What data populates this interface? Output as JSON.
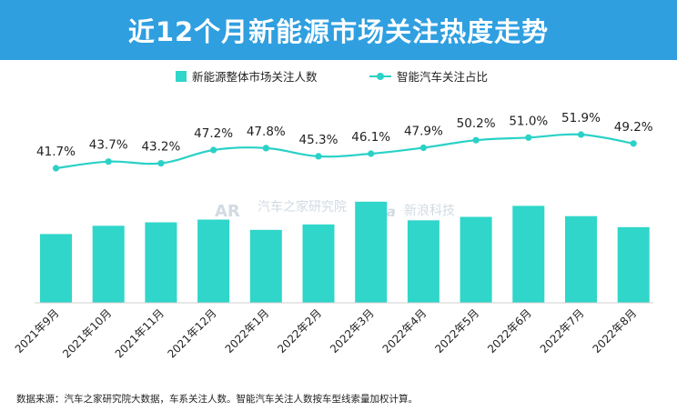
{
  "header": {
    "title": "近12个月新能源市场关注热度走势"
  },
  "legend": {
    "bar_label": "新能源整体市场关注人数",
    "line_label": "智能汽车关注占比"
  },
  "watermark": {
    "logo_text": "AR",
    "source_text": "汽车之家研究院",
    "sina_logo": "sina",
    "sina_text": "新浪科技"
  },
  "footnote": "数据来源：汽车之家研究院大数据，车系关注人数。智能汽车关注人数按车型线索量加权计算。",
  "colors": {
    "header_bg": "#2f9fe0",
    "bar": "#2fd6c9",
    "line": "#2ad1c6"
  },
  "chart_data": {
    "type": "bar+line",
    "title": "近12个月新能源市场关注热度走势",
    "categories": [
      "2021年9月",
      "2021年10月",
      "2021年11月",
      "2021年12月",
      "2022年1月",
      "2022年2月",
      "2022年3月",
      "2022年4月",
      "2022年5月",
      "2022年6月",
      "2022年7月",
      "2022年8月"
    ],
    "series": [
      {
        "name": "新能源整体市场关注人数",
        "kind": "bar",
        "values": [
          100,
          112,
          117,
          121,
          106,
          114,
          147,
          120,
          125,
          141,
          126,
          110
        ],
        "ylim": [
          0,
          160
        ]
      },
      {
        "name": "智能汽车关注占比",
        "kind": "line",
        "values": [
          41.7,
          43.7,
          43.2,
          47.2,
          47.8,
          45.3,
          46.1,
          47.9,
          50.2,
          51.0,
          51.9,
          49.2
        ],
        "labels": [
          "41.7%",
          "43.7%",
          "43.2%",
          "47.2%",
          "47.8%",
          "45.3%",
          "46.1%",
          "47.9%",
          "50.2%",
          "51.0%",
          "51.9%",
          "49.2%"
        ],
        "ylim": [
          41.7,
          51.9
        ]
      }
    ],
    "xlabel": "",
    "ylabel": "",
    "grid": false,
    "legend": "top-center"
  }
}
